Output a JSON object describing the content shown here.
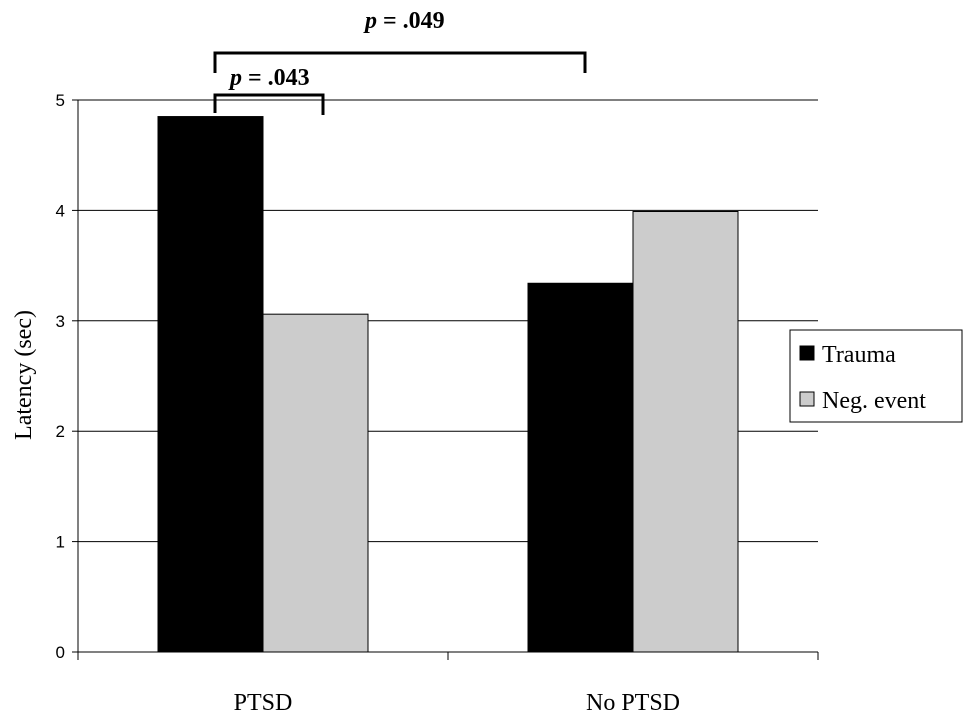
{
  "chart_data": {
    "type": "bar",
    "categories": [
      "PTSD",
      "No PTSD"
    ],
    "series": [
      {
        "name": "Trauma",
        "values": [
          4.85,
          3.34
        ],
        "color": "#000000"
      },
      {
        "name": "Neg. event",
        "values": [
          3.06,
          3.99
        ],
        "color": "#cccccc"
      }
    ],
    "xlabel": "",
    "ylabel": "Latency (sec)",
    "ylim": [
      0,
      5
    ],
    "yticks": [
      "0",
      "1",
      "2",
      "3",
      "4",
      "5"
    ],
    "grid": true,
    "legend_position": "right",
    "annotations": [
      {
        "p_label": "p",
        "value_label": " = .049",
        "from": "PTSD / Trauma",
        "to": "No PTSD / Trauma"
      },
      {
        "p_label": "p",
        "value_label": " = .043",
        "from": "PTSD / Trauma",
        "to": "PTSD / Neg. event"
      }
    ]
  }
}
